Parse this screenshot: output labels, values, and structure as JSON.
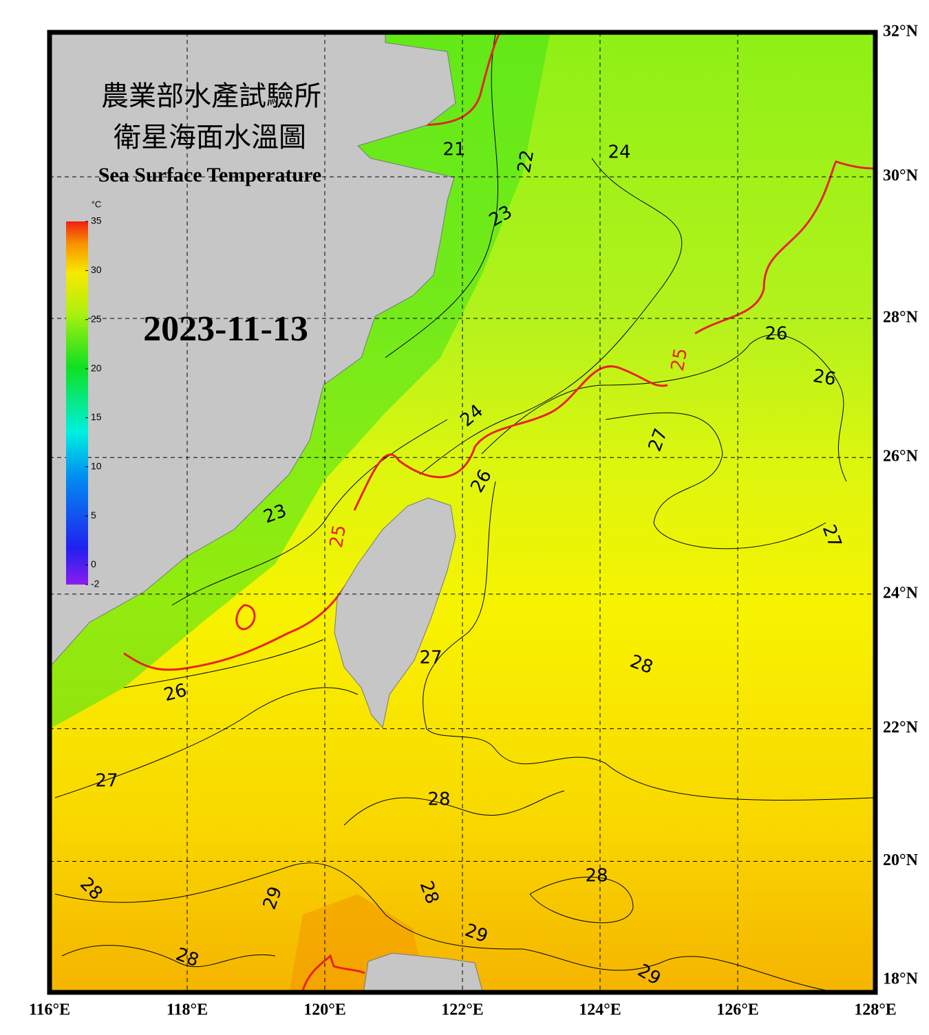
{
  "title_zh_1": "農業部水產試驗所",
  "title_zh_2": "衛星海面水溫圖",
  "title_en": "Sea Surface Temperature",
  "date": "2023-11-13",
  "colorbar": {
    "unit": "°C",
    "range": [
      -2,
      35
    ],
    "ticks": [
      -2,
      0,
      5,
      10,
      15,
      20,
      25,
      30,
      35
    ]
  },
  "longitude_ticks": [
    {
      "value": 116,
      "label": "116°E"
    },
    {
      "value": 118,
      "label": "118°E"
    },
    {
      "value": 120,
      "label": "120°E"
    },
    {
      "value": 122,
      "label": "122°E"
    },
    {
      "value": 124,
      "label": "124°E"
    },
    {
      "value": 126,
      "label": "126°E"
    },
    {
      "value": 128,
      "label": "128°E"
    }
  ],
  "latitude_ticks": [
    {
      "value": 32,
      "label": "32°N"
    },
    {
      "value": 30,
      "label": "30°N"
    },
    {
      "value": 28,
      "label": "28°N"
    },
    {
      "value": 26,
      "label": "26°N"
    },
    {
      "value": 24,
      "label": "24°N"
    },
    {
      "value": 22,
      "label": "22°N"
    },
    {
      "value": 20,
      "label": "20°N"
    },
    {
      "value": 18,
      "label": "18°N"
    }
  ],
  "highlight_contour": 25,
  "highlight_color": "#e8231e",
  "contour_labels": [
    21,
    22,
    24,
    23,
    23,
    24,
    25,
    26,
    26,
    25,
    26,
    27,
    27,
    27,
    28,
    26,
    27,
    28,
    28,
    28,
    29,
    28,
    29,
    28,
    29
  ]
}
